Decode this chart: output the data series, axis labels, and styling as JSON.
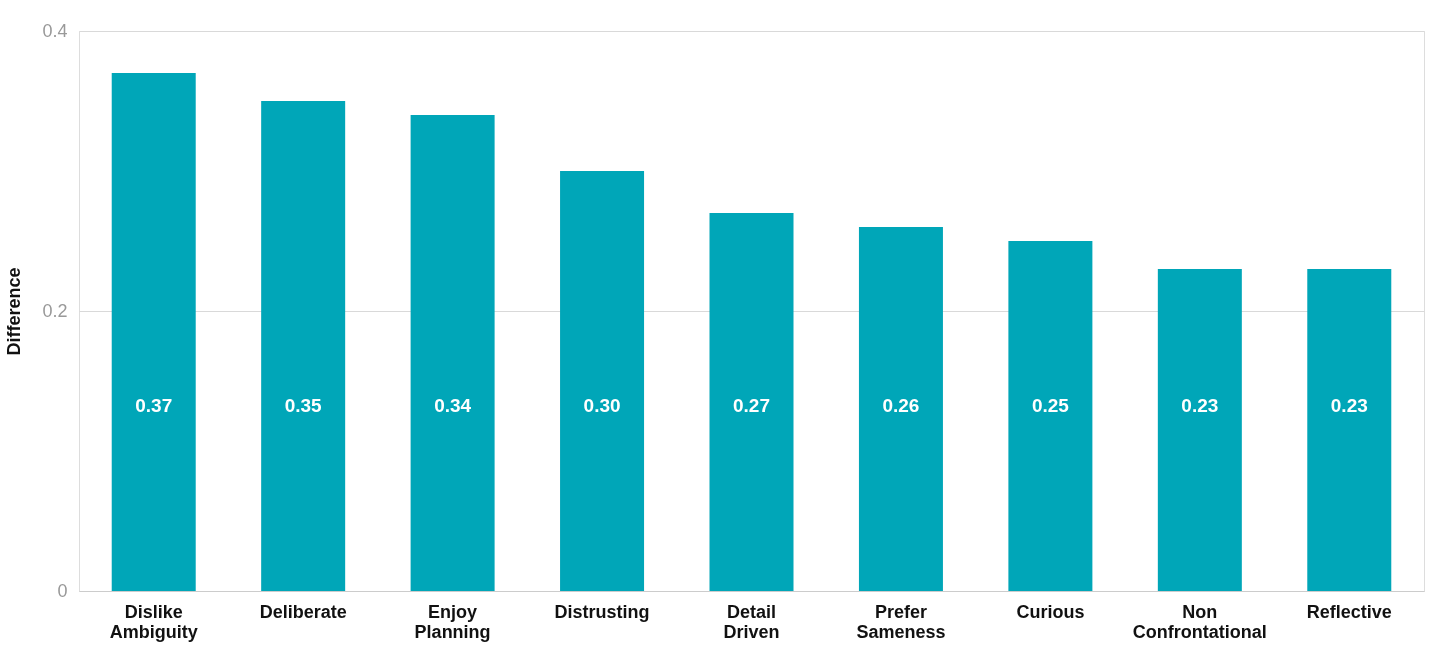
{
  "chart_data": {
    "type": "bar",
    "ylabel": "Difference",
    "categories": [
      "Dislike Ambiguity",
      "Deliberate",
      "Enjoy Planning",
      "Distrusting",
      "Detail Driven",
      "Prefer Sameness",
      "Curious",
      "Non Confrontational",
      "Reflective"
    ],
    "values": [
      0.37,
      0.35,
      0.34,
      0.3,
      0.27,
      0.26,
      0.25,
      0.23,
      0.23
    ],
    "value_labels": [
      "0.37",
      "0.35",
      "0.34",
      "0.30",
      "0.27",
      "0.26",
      "0.25",
      "0.23",
      "0.23"
    ],
    "color": "#00a6b8",
    "ylim": [
      0,
      0.4
    ],
    "yticks": [
      0,
      0.2,
      0.4
    ],
    "grid": "y"
  }
}
